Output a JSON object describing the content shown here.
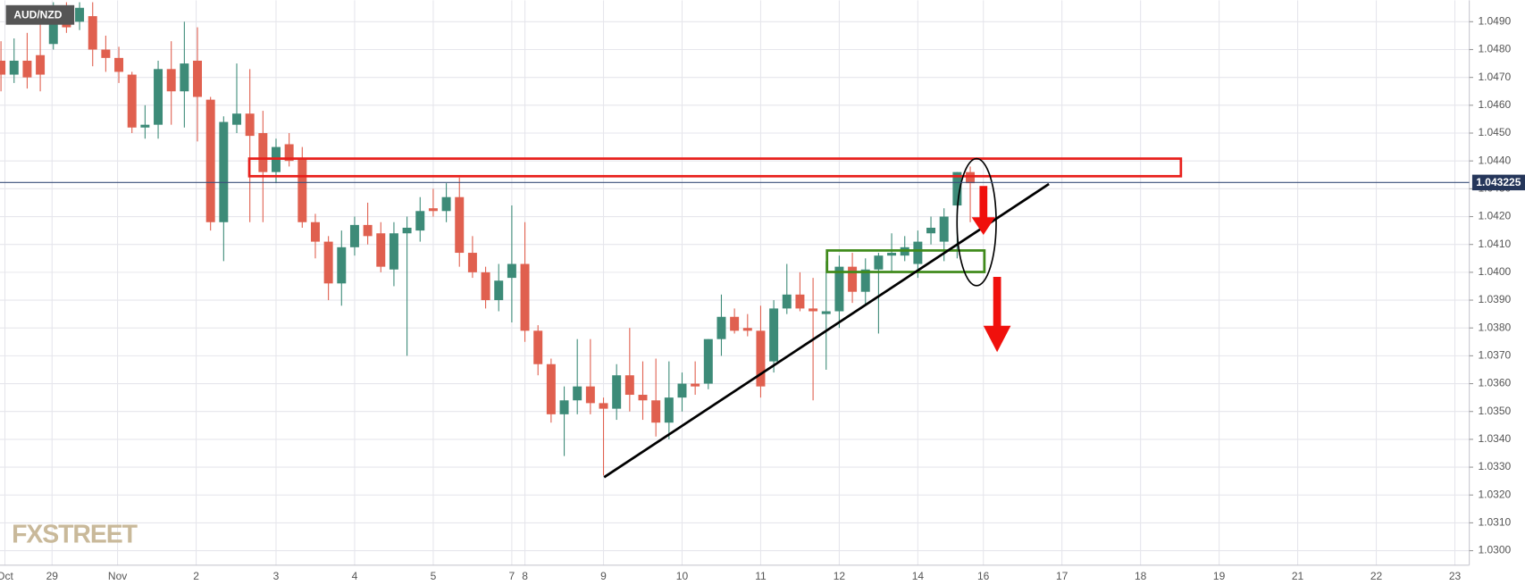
{
  "chart_data": {
    "type": "candlestick",
    "title": "AUD/NZD",
    "watermark": "FXSTREET",
    "up_color": "#3d8b78",
    "down_color": "#e0604f",
    "grid": true,
    "xlim": [
      -0.075,
      112.1
    ],
    "ylim": [
      1.02948,
      1.04977
    ],
    "xticks": [
      {
        "value": 0.3,
        "label": "Oct"
      },
      {
        "value": 3.9,
        "label": "29"
      },
      {
        "value": 8.9,
        "label": "Nov"
      },
      {
        "value": 14.9,
        "label": "2"
      },
      {
        "value": 21,
        "label": "3"
      },
      {
        "value": 27,
        "label": "4"
      },
      {
        "value": 33,
        "label": "5"
      },
      {
        "value": 39,
        "label": "7"
      },
      {
        "value": 40,
        "label": "8"
      },
      {
        "value": 46,
        "label": "9"
      },
      {
        "value": 52,
        "label": "10"
      },
      {
        "value": 58,
        "label": "11"
      },
      {
        "value": 64,
        "label": "12"
      },
      {
        "value": 70,
        "label": "14"
      },
      {
        "value": 75,
        "label": "16"
      },
      {
        "value": 81,
        "label": "17"
      },
      {
        "value": 87,
        "label": "18"
      },
      {
        "value": 93,
        "label": "19"
      },
      {
        "value": 99,
        "label": "21"
      },
      {
        "value": 105,
        "label": "22"
      },
      {
        "value": 111,
        "label": "23"
      }
    ],
    "yticks": [
      {
        "value": 1.03,
        "label": "1.0300"
      },
      {
        "value": 1.031,
        "label": "1.0310"
      },
      {
        "value": 1.032,
        "label": "1.0320"
      },
      {
        "value": 1.033,
        "label": "1.0330"
      },
      {
        "value": 1.034,
        "label": "1.0340"
      },
      {
        "value": 1.035,
        "label": "1.0350"
      },
      {
        "value": 1.036,
        "label": "1.0360"
      },
      {
        "value": 1.037,
        "label": "1.0370"
      },
      {
        "value": 1.038,
        "label": "1.0380"
      },
      {
        "value": 1.039,
        "label": "1.0390"
      },
      {
        "value": 1.04,
        "label": "1.0400"
      },
      {
        "value": 1.041,
        "label": "1.0410"
      },
      {
        "value": 1.042,
        "label": "1.0420"
      },
      {
        "value": 1.043,
        "label": "1.0430"
      },
      {
        "value": 1.044,
        "label": "1.0440"
      },
      {
        "value": 1.045,
        "label": "1.0450"
      },
      {
        "value": 1.046,
        "label": "1.0460"
      },
      {
        "value": 1.047,
        "label": "1.0470"
      },
      {
        "value": 1.048,
        "label": "1.0480"
      },
      {
        "value": 1.049,
        "label": "1.0490"
      }
    ],
    "last_price": {
      "value": 1.043225,
      "label": "1.043225"
    },
    "open": [
      1.0476,
      1.0471,
      1.0476,
      1.0478,
      1.0482,
      1.0493,
      1.049,
      1.0492,
      1.048,
      1.0477,
      1.0471,
      1.0452,
      1.0453,
      1.0473,
      1.0465,
      1.0476,
      1.0462,
      1.0418,
      1.0453,
      1.0457,
      1.045,
      1.0436,
      1.0446,
      1.0441,
      1.0418,
      1.0411,
      1.0396,
      1.0409,
      1.0417,
      1.0414,
      1.0401,
      1.0414,
      1.0415,
      1.0423,
      1.0422,
      1.0427,
      1.0407,
      1.04,
      1.039,
      1.0398,
      1.0403,
      1.0379,
      1.0367,
      1.0349,
      1.0354,
      1.0359,
      1.0353,
      1.0351,
      1.0363,
      1.0356,
      1.0354,
      1.0346,
      1.0355,
      1.036,
      1.036,
      1.0376,
      1.0384,
      1.038,
      1.0379,
      1.0368,
      1.0387,
      1.0392,
      1.0387,
      1.0385,
      1.0386,
      1.0402,
      1.0393,
      1.0401,
      1.0406,
      1.0406,
      1.0403,
      1.0414,
      1.0411,
      1.0424,
      1.0436
    ],
    "high": [
      1.0483,
      1.0484,
      1.0486,
      1.049,
      1.0497,
      1.0497,
      1.0497,
      1.0497,
      1.0485,
      1.0481,
      1.0472,
      1.046,
      1.0476,
      1.0483,
      1.049,
      1.0488,
      1.0463,
      1.0456,
      1.0475,
      1.0473,
      1.0458,
      1.0448,
      1.045,
      1.0445,
      1.0421,
      1.0413,
      1.0415,
      1.042,
      1.0425,
      1.0418,
      1.0418,
      1.042,
      1.0427,
      1.043,
      1.0432,
      1.0434,
      1.0413,
      1.0402,
      1.0403,
      1.0424,
      1.0418,
      1.0381,
      1.0369,
      1.0359,
      1.0376,
      1.0376,
      1.0355,
      1.0367,
      1.038,
      1.0368,
      1.0369,
      1.0368,
      1.0364,
      1.0368,
      1.0376,
      1.0392,
      1.0387,
      1.0385,
      1.0388,
      1.039,
      1.0403,
      1.04,
      1.0398,
      1.0404,
      1.0406,
      1.0407,
      1.0405,
      1.0407,
      1.0414,
      1.0413,
      1.0415,
      1.042,
      1.0423,
      1.0436,
      1.0438
    ],
    "low": [
      1.0465,
      1.0468,
      1.0466,
      1.0465,
      1.048,
      1.0486,
      1.0487,
      1.0474,
      1.0472,
      1.0468,
      1.045,
      1.0448,
      1.0448,
      1.0453,
      1.0452,
      1.0447,
      1.0415,
      1.0404,
      1.045,
      1.0418,
      1.0418,
      1.0432,
      1.0438,
      1.0416,
      1.0405,
      1.039,
      1.0388,
      1.0406,
      1.041,
      1.04,
      1.0395,
      1.037,
      1.0411,
      1.042,
      1.0418,
      1.0402,
      1.0398,
      1.0387,
      1.0386,
      1.0382,
      1.0375,
      1.0363,
      1.0346,
      1.0334,
      1.0349,
      1.0349,
      1.0327,
      1.0347,
      1.035,
      1.0347,
      1.0341,
      1.034,
      1.035,
      1.0356,
      1.0358,
      1.037,
      1.0378,
      1.0377,
      1.0355,
      1.0364,
      1.0385,
      1.0386,
      1.0354,
      1.0365,
      1.038,
      1.0389,
      1.0388,
      1.0378,
      1.04,
      1.0404,
      1.0398,
      1.041,
      1.0404,
      1.0405,
      1.0418
    ],
    "close": [
      1.0471,
      1.0476,
      1.047,
      1.0471,
      1.0492,
      1.0488,
      1.0495,
      1.048,
      1.0477,
      1.0472,
      1.0452,
      1.0453,
      1.0473,
      1.0465,
      1.0475,
      1.0463,
      1.0418,
      1.0454,
      1.0457,
      1.0449,
      1.0436,
      1.0445,
      1.044,
      1.0418,
      1.0411,
      1.0396,
      1.0409,
      1.0417,
      1.0413,
      1.0402,
      1.0414,
      1.0416,
      1.0422,
      1.0422,
      1.0427,
      1.0407,
      1.04,
      1.039,
      1.0397,
      1.0403,
      1.0379,
      1.0367,
      1.0349,
      1.0354,
      1.0359,
      1.0353,
      1.0351,
      1.0363,
      1.0356,
      1.0354,
      1.0346,
      1.0355,
      1.036,
      1.0359,
      1.0376,
      1.0384,
      1.0379,
      1.0379,
      1.0359,
      1.0387,
      1.0392,
      1.0387,
      1.0386,
      1.0386,
      1.0402,
      1.0393,
      1.0401,
      1.0406,
      1.0407,
      1.0409,
      1.0411,
      1.0416,
      1.042,
      1.0436,
      1.0432
    ]
  }
}
